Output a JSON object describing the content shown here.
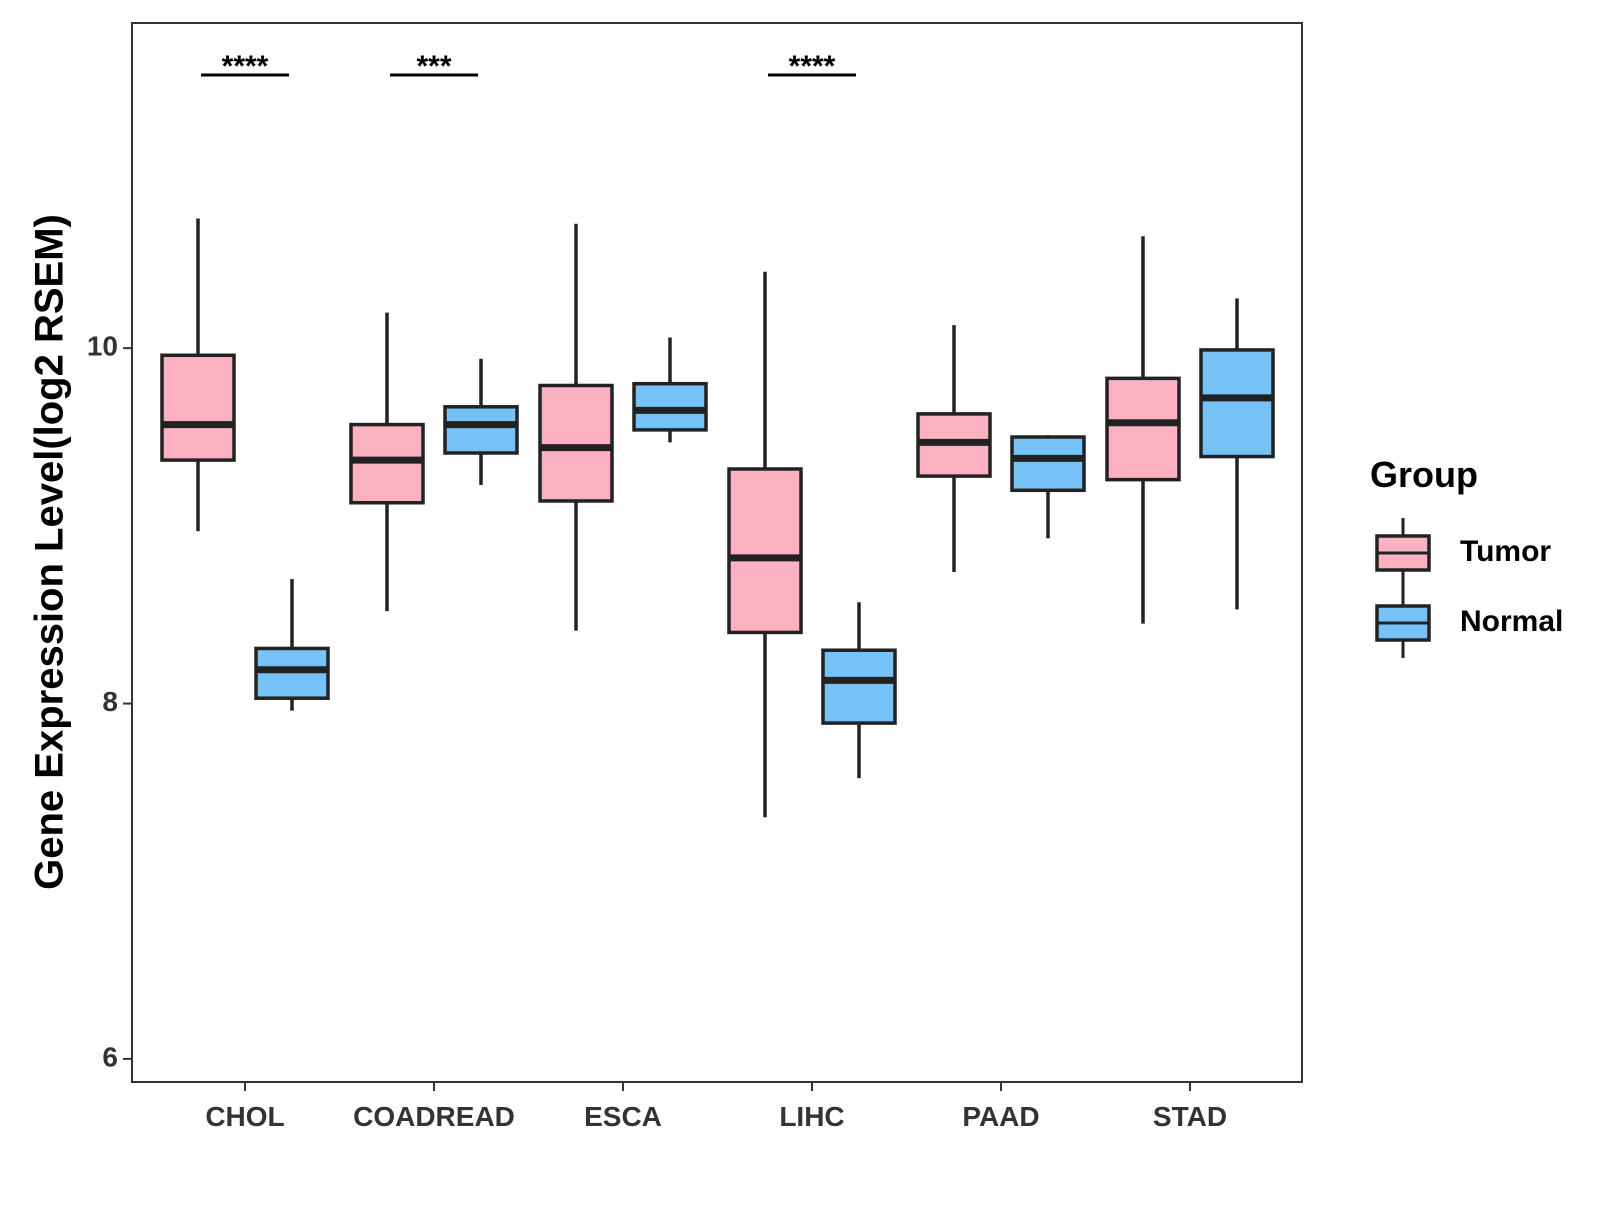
{
  "chart_data": {
    "type": "box",
    "title": "",
    "xlabel": "",
    "ylabel": "Gene Expression Level(log2 RSEM)",
    "ylim": [
      5.87,
      11.83
    ],
    "yticks": [
      6,
      8,
      10
    ],
    "grid": false,
    "categories": [
      "CHOL",
      "COADREAD",
      "ESCA",
      "LIHC",
      "PAAD",
      "STAD"
    ],
    "legend": {
      "title": "Group",
      "placement": "right",
      "items": [
        {
          "name": "Tumor",
          "color": "#FBB1C1"
        },
        {
          "name": "Normal",
          "color": "#76C1F5"
        }
      ]
    },
    "series": [
      {
        "name": "Tumor",
        "color": "#FBB1C1",
        "boxes": [
          {
            "category": "CHOL",
            "lower_whisker": 8.97,
            "q1": 9.37,
            "median": 9.57,
            "q3": 9.96,
            "upper_whisker": 10.73
          },
          {
            "category": "COADREAD",
            "lower_whisker": 8.52,
            "q1": 9.13,
            "median": 9.37,
            "q3": 9.57,
            "upper_whisker": 10.2
          },
          {
            "category": "ESCA",
            "lower_whisker": 8.41,
            "q1": 9.14,
            "median": 9.44,
            "q3": 9.79,
            "upper_whisker": 10.7
          },
          {
            "category": "LIHC",
            "lower_whisker": 7.36,
            "q1": 8.4,
            "median": 8.82,
            "q3": 9.32,
            "upper_whisker": 10.43
          },
          {
            "category": "PAAD",
            "lower_whisker": 8.74,
            "q1": 9.28,
            "median": 9.47,
            "q3": 9.63,
            "upper_whisker": 10.13
          },
          {
            "category": "STAD",
            "lower_whisker": 8.45,
            "q1": 9.26,
            "median": 9.58,
            "q3": 9.83,
            "upper_whisker": 10.63
          }
        ]
      },
      {
        "name": "Normal",
        "color": "#76C1F5",
        "boxes": [
          {
            "category": "CHOL",
            "lower_whisker": 7.96,
            "q1": 8.03,
            "median": 8.19,
            "q3": 8.31,
            "upper_whisker": 8.7
          },
          {
            "category": "COADREAD",
            "lower_whisker": 9.23,
            "q1": 9.41,
            "median": 9.57,
            "q3": 9.67,
            "upper_whisker": 9.94
          },
          {
            "category": "ESCA",
            "lower_whisker": 9.47,
            "q1": 9.54,
            "median": 9.65,
            "q3": 9.8,
            "upper_whisker": 10.06
          },
          {
            "category": "LIHC",
            "lower_whisker": 7.58,
            "q1": 7.89,
            "median": 8.13,
            "q3": 8.3,
            "upper_whisker": 8.57
          },
          {
            "category": "PAAD",
            "lower_whisker": 8.93,
            "q1": 9.2,
            "median": 9.38,
            "q3": 9.5,
            "upper_whisker": 9.51
          },
          {
            "category": "STAD",
            "lower_whisker": 8.53,
            "q1": 9.39,
            "median": 9.72,
            "q3": 9.99,
            "upper_whisker": 10.28
          }
        ]
      }
    ],
    "annotations": [
      {
        "category": "CHOL",
        "label": "****"
      },
      {
        "category": "COADREAD",
        "label": "***"
      },
      {
        "category": "LIHC",
        "label": "****"
      }
    ]
  }
}
